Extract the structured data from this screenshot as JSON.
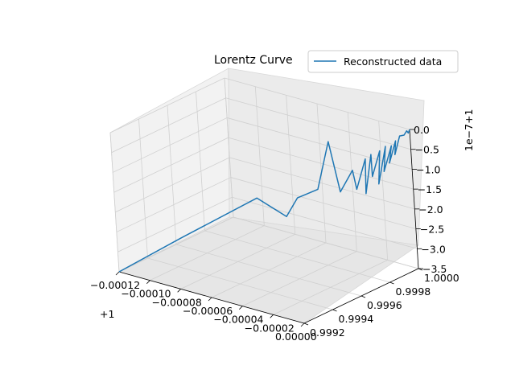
{
  "chart_data": {
    "type": "line",
    "projection": "3d",
    "title": "Lorentz Curve",
    "legend": {
      "entries": [
        "Reconstructed data"
      ],
      "placement": "top-right"
    },
    "grid": true,
    "series": [
      {
        "name": "Reconstructed data",
        "color": "#1f77b4",
        "x_offset": "+1",
        "y_offset": "",
        "z_offset": "1e−7+1",
        "x": [
          -0.00012,
          -9.2e-05,
          -6e-05,
          -4.6e-05,
          -4e-05,
          -3.2e-05,
          -3e-05,
          -2.4e-05,
          -2e-05,
          -1.6e-05,
          -1.4e-05,
          -1.2e-05,
          -1.2e-05,
          -1e-05,
          -8e-06,
          -8e-06,
          -6e-06,
          -6e-06,
          -4e-06,
          -4e-06,
          -3e-06,
          -2e-06,
          -2e-06,
          -1e-06,
          0.0,
          -1e-06,
          0.0
        ],
        "y": [
          0.9992,
          0.99935,
          0.99955,
          0.9996,
          0.99962,
          0.99968,
          0.99975,
          0.99975,
          0.9998,
          0.99978,
          0.99983,
          0.9998,
          0.99985,
          0.99983,
          0.99987,
          0.99985,
          0.99989,
          0.99987,
          0.99991,
          0.99989,
          0.99993,
          0.99991,
          0.99995,
          0.99997,
          0.99998,
          1.0,
          1.0
        ],
        "z": [
          -3.5,
          -2.6,
          -1.6,
          -2.0,
          -1.5,
          -1.3,
          -0.2,
          -1.4,
          -0.9,
          -1.3,
          -0.6,
          -1.4,
          -0.5,
          -1.0,
          -0.4,
          -1.2,
          -0.3,
          -0.9,
          -0.3,
          -0.7,
          -0.2,
          -0.5,
          -0.1,
          -0.1,
          0.0,
          -0.1,
          0.0
        ]
      }
    ],
    "axes": {
      "x": {
        "ticks": [
          "−0.00012",
          "−0.00010",
          "−0.00008",
          "−0.00006",
          "−0.00004",
          "−0.00002",
          "0.00000"
        ],
        "offset_label": "+1",
        "lim": [
          -0.00012,
          0.0
        ]
      },
      "y": {
        "ticks": [
          "0.9992",
          "0.9994",
          "0.9996",
          "0.9998",
          "1.0000"
        ],
        "lim": [
          0.9992,
          1.0
        ]
      },
      "z": {
        "ticks": [
          "0.0",
          "−0.5",
          "−1.0",
          "−1.5",
          "−2.0",
          "−2.5",
          "−3.0",
          "−3.5"
        ],
        "offset_label": "1e−7+1",
        "lim": [
          -3.5,
          0.0
        ]
      }
    }
  }
}
